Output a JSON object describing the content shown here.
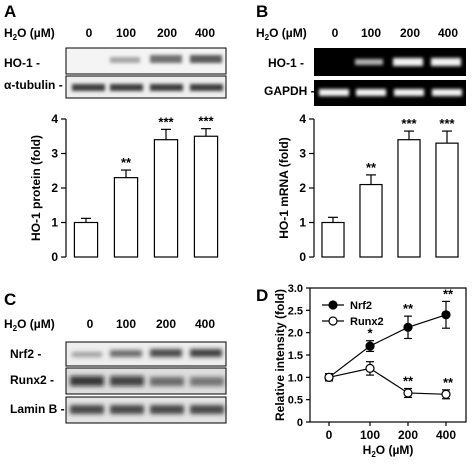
{
  "panels": {
    "A": {
      "letter": "A",
      "dose_header_prefix": "H",
      "dose_header_sub": "2",
      "dose_header_mid": "O",
      "dose_header_suffix": " (µM)",
      "doses": [
        "0",
        "100",
        "200",
        "400"
      ],
      "blot_labels": [
        "HO-1 -",
        "α-tubulin -"
      ]
    },
    "B": {
      "letter": "B",
      "dose_header_prefix": "H",
      "dose_header_sub": "2",
      "dose_header_mid": "O",
      "dose_header_suffix": " (µM)",
      "doses": [
        "0",
        "100",
        "200",
        "400"
      ],
      "blot_labels": [
        "HO-1 -",
        "GAPDH -"
      ]
    },
    "C": {
      "letter": "C",
      "dose_header_prefix": "H",
      "dose_header_sub": "2",
      "dose_header_mid": "O",
      "dose_header_suffix": " (µM)",
      "doses": [
        "0",
        "100",
        "200",
        "400"
      ],
      "blot_labels": [
        "Nrf2 -",
        "Runx2 -",
        "Lamin B -"
      ]
    },
    "D": {
      "letter": "D"
    }
  },
  "chart_data": [
    {
      "panel": "A",
      "type": "bar",
      "categories": [
        "0",
        "100",
        "200",
        "400"
      ],
      "values": [
        1.0,
        2.3,
        3.4,
        3.5
      ],
      "errors": [
        0.12,
        0.22,
        0.3,
        0.22
      ],
      "annotations": [
        "",
        "**",
        "***",
        "***"
      ],
      "ylabel": "HO-1 protein (fold)",
      "ylim": [
        0,
        4
      ],
      "yticks": [
        "0",
        "1",
        "2",
        "3",
        "4"
      ]
    },
    {
      "panel": "B",
      "type": "bar",
      "categories": [
        "0",
        "100",
        "200",
        "400"
      ],
      "values": [
        1.0,
        2.1,
        3.4,
        3.3
      ],
      "errors": [
        0.15,
        0.28,
        0.25,
        0.35
      ],
      "annotations": [
        "",
        "**",
        "***",
        "***"
      ],
      "ylabel": "HO-1 mRNA (fold)",
      "ylim": [
        0,
        4
      ],
      "yticks": [
        "0",
        "1",
        "2",
        "3",
        "4"
      ]
    },
    {
      "panel": "D",
      "type": "line",
      "categories": [
        "0",
        "100",
        "200",
        "400"
      ],
      "ylabel": "Relative intensity (fold)",
      "xlabel_prefix": "H",
      "xlabel_sub": "2",
      "xlabel_mid": "O",
      "xlabel_suffix": " (µM)",
      "ylim": [
        0,
        3.0
      ],
      "yticks": [
        "0",
        "0.5",
        "1.0",
        "1.5",
        "2.0",
        "2.5",
        "3.0"
      ],
      "series": [
        {
          "name": "Nrf2",
          "values": [
            1.0,
            1.7,
            2.12,
            2.4
          ],
          "errors": [
            0.08,
            0.12,
            0.25,
            0.3
          ],
          "annotations": [
            "",
            "*",
            "**",
            "**"
          ],
          "marker": "filled"
        },
        {
          "name": "Runx2",
          "values": [
            1.0,
            1.2,
            0.65,
            0.62
          ],
          "errors": [
            0.08,
            0.15,
            0.1,
            0.1
          ],
          "annotations": [
            "",
            "",
            "**",
            "**"
          ],
          "marker": "open"
        }
      ]
    }
  ]
}
